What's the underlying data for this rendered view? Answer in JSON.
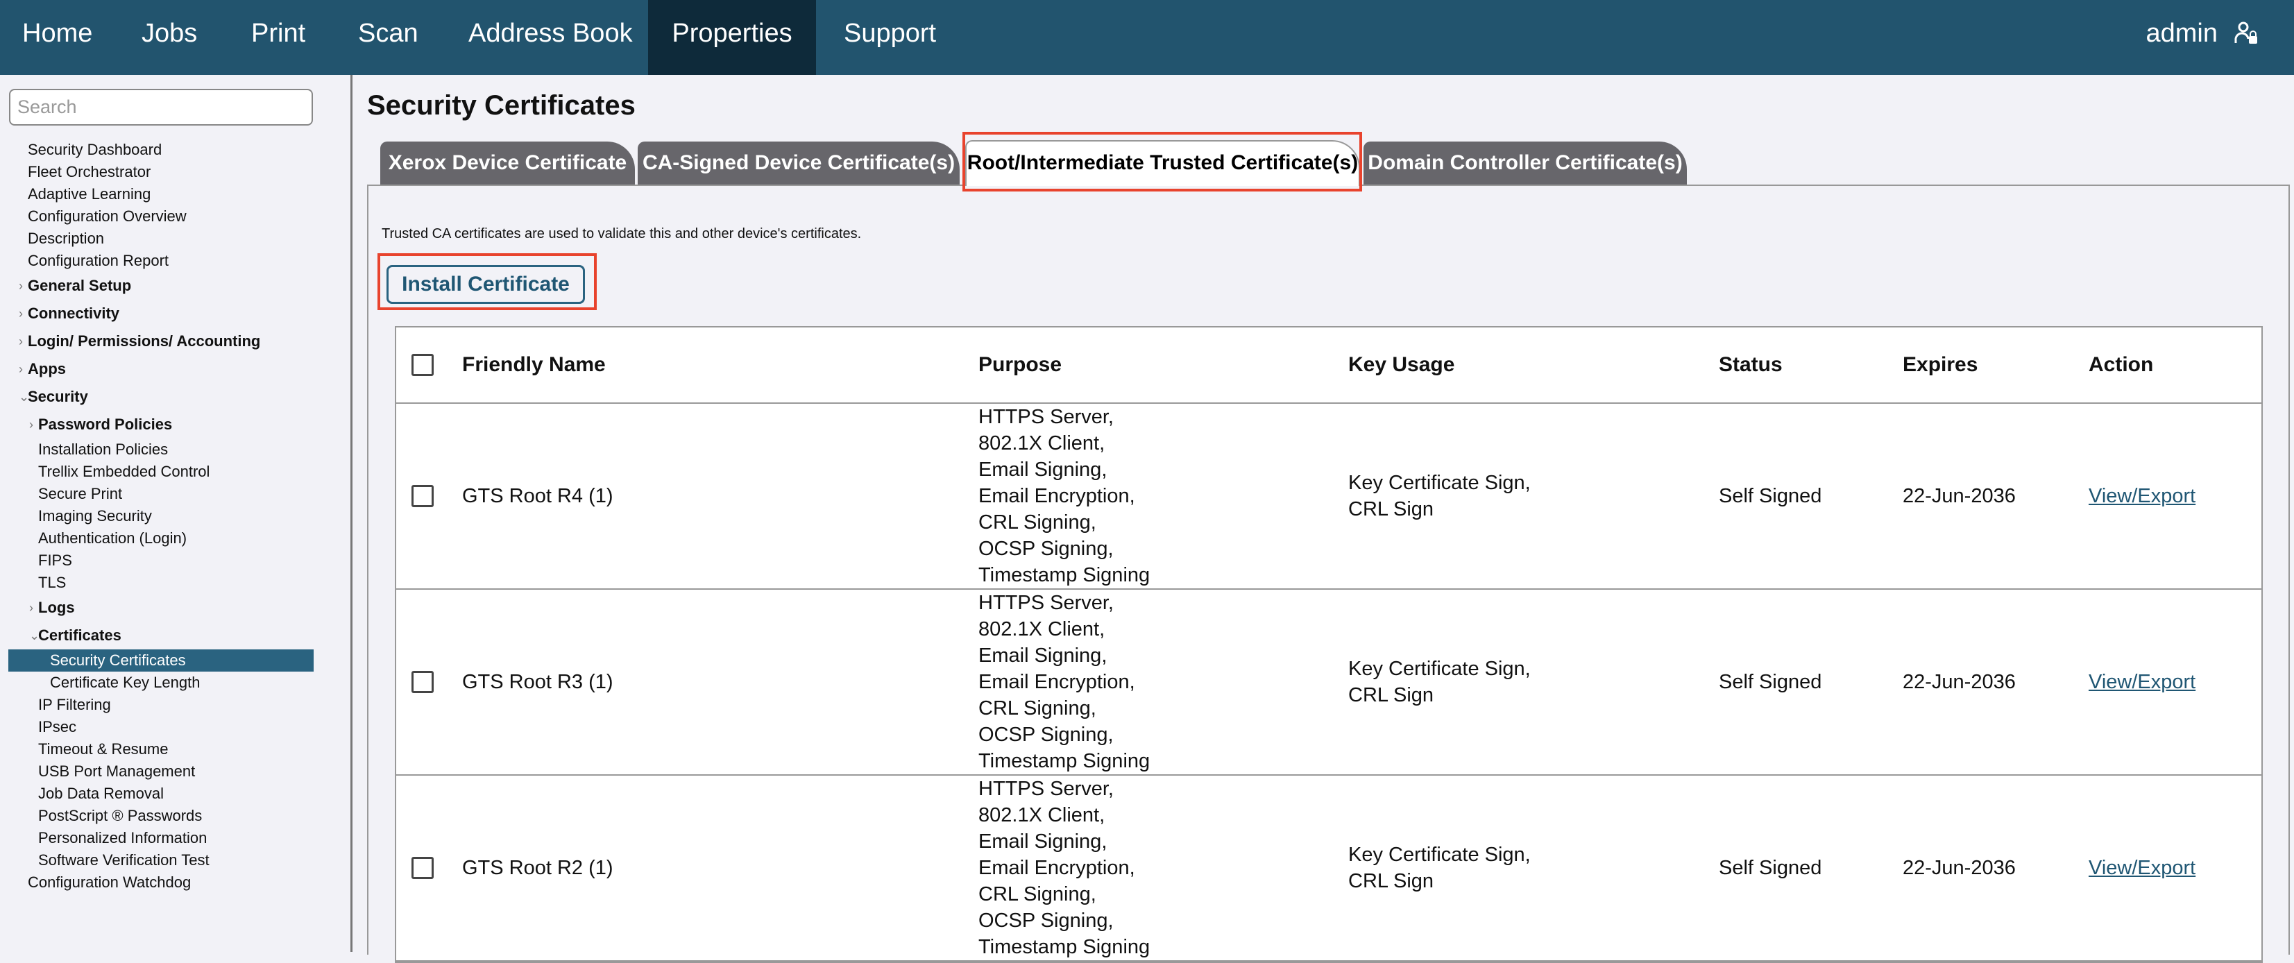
{
  "header": {
    "nav": [
      "Home",
      "Jobs",
      "Print",
      "Scan",
      "Address Book",
      "Properties",
      "Support"
    ],
    "active": "Properties",
    "user": "admin",
    "user_icon": "user-lock-icon",
    "color": "#22546e"
  },
  "sidebar": {
    "search_placeholder": "Search",
    "items": [
      {
        "label": "Security Dashboard"
      },
      {
        "label": "Fleet Orchestrator"
      },
      {
        "label": "Adaptive Learning"
      },
      {
        "label": "Configuration Overview"
      },
      {
        "label": "Description"
      },
      {
        "label": "Configuration Report"
      },
      {
        "label": "General Setup"
      },
      {
        "label": "Connectivity"
      },
      {
        "label": "Login/ Permissions/ Accounting"
      },
      {
        "label": "Apps"
      },
      {
        "label": "Security"
      },
      {
        "label": "Password Policies"
      },
      {
        "label": "Installation Policies"
      },
      {
        "label": "Trellix Embedded Control"
      },
      {
        "label": "Secure Print"
      },
      {
        "label": "Imaging Security"
      },
      {
        "label": "Authentication (Login)"
      },
      {
        "label": "FIPS"
      },
      {
        "label": "TLS"
      },
      {
        "label": "Logs"
      },
      {
        "label": "Certificates"
      },
      {
        "label": "Security Certificates"
      },
      {
        "label": "Certificate Key Length"
      },
      {
        "label": "IP Filtering"
      },
      {
        "label": "IPsec"
      },
      {
        "label": "Timeout & Resume"
      },
      {
        "label": "USB Port Management"
      },
      {
        "label": "Job Data Removal"
      },
      {
        "label": "PostScript ® Passwords"
      },
      {
        "label": "Personalized Information"
      },
      {
        "label": "Software Verification Test"
      },
      {
        "label": "Configuration Watchdog"
      }
    ]
  },
  "main": {
    "title": "Security Certificates",
    "tabs": [
      "Xerox Device Certificate",
      "CA-Signed Device Certificate(s)",
      "Root/Intermediate Trusted Certificate(s)",
      "Domain Controller Certificate(s)"
    ],
    "active_tab": "Root/Intermediate Trusted Certificate(s)",
    "note": "Trusted CA certificates are used to validate this and other device's certificates.",
    "install_label": "Install Certificate",
    "table": {
      "headers": [
        "Friendly Name",
        "Purpose",
        "Key Usage",
        "Status",
        "Expires",
        "Action"
      ],
      "rows": [
        {
          "name": "GTS Root R4 (1)",
          "purpose": [
            "HTTPS Server,",
            "802.1X Client,",
            "Email Signing,",
            "Email Encryption,",
            "CRL Signing,",
            "OCSP Signing,",
            "Timestamp Signing"
          ],
          "key_usage": [
            "Key Certificate Sign,",
            "CRL Sign"
          ],
          "status": "Self Signed",
          "expires": "22-Jun-2036",
          "action": "View/Export"
        },
        {
          "name": "GTS Root R3 (1)",
          "purpose": [
            "HTTPS Server,",
            "802.1X Client,",
            "Email Signing,",
            "Email Encryption,",
            "CRL Signing,",
            "OCSP Signing,",
            "Timestamp Signing"
          ],
          "key_usage": [
            "Key Certificate Sign,",
            "CRL Sign"
          ],
          "status": "Self Signed",
          "expires": "22-Jun-2036",
          "action": "View/Export"
        },
        {
          "name": "GTS Root R2 (1)",
          "purpose": [
            "HTTPS Server,",
            "802.1X Client,",
            "Email Signing,",
            "Email Encryption,",
            "CRL Signing,",
            "OCSP Signing,",
            "Timestamp Signing"
          ],
          "key_usage": [
            "Key Certificate Sign,",
            "CRL Sign"
          ],
          "status": "Self Signed",
          "expires": "22-Jun-2036",
          "action": "View/Export"
        }
      ]
    }
  }
}
